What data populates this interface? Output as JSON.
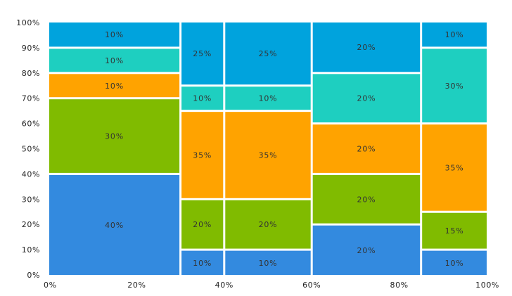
{
  "chart_data": {
    "type": "mekko",
    "x_ticks": [
      "0%",
      "20%",
      "40%",
      "60%",
      "80%",
      "100%"
    ],
    "y_ticks": [
      "0%",
      "10%",
      "20%",
      "30%",
      "40%",
      "50%",
      "60%",
      "70%",
      "80%",
      "90%",
      "100%"
    ],
    "xlim": [
      0,
      100
    ],
    "ylim": [
      0,
      100
    ],
    "grid": false,
    "columns": [
      {
        "width": 30,
        "segments": [
          {
            "value": 40,
            "label": "40%",
            "color": "#338ADF"
          },
          {
            "value": 30,
            "label": "30%",
            "color": "#80BB00"
          },
          {
            "value": 10,
            "label": "10%",
            "color": "#FFA300"
          },
          {
            "value": 10,
            "label": "10%",
            "color": "#1ECFC0"
          },
          {
            "value": 10,
            "label": "10%",
            "color": "#00A3DD"
          }
        ]
      },
      {
        "width": 10,
        "segments": [
          {
            "value": 10,
            "label": "10%",
            "color": "#338ADF"
          },
          {
            "value": 20,
            "label": "20%",
            "color": "#80BB00"
          },
          {
            "value": 35,
            "label": "35%",
            "color": "#FFA300"
          },
          {
            "value": 10,
            "label": "10%",
            "color": "#1ECFC0"
          },
          {
            "value": 25,
            "label": "25%",
            "color": "#00A3DD"
          }
        ]
      },
      {
        "width": 20,
        "segments": [
          {
            "value": 10,
            "label": "10%",
            "color": "#338ADF"
          },
          {
            "value": 20,
            "label": "20%",
            "color": "#80BB00"
          },
          {
            "value": 35,
            "label": "35%",
            "color": "#FFA300"
          },
          {
            "value": 10,
            "label": "10%",
            "color": "#1ECFC0"
          },
          {
            "value": 25,
            "label": "25%",
            "color": "#00A3DD"
          }
        ]
      },
      {
        "width": 25,
        "segments": [
          {
            "value": 20,
            "label": "20%",
            "color": "#338ADF"
          },
          {
            "value": 20,
            "label": "20%",
            "color": "#80BB00"
          },
          {
            "value": 20,
            "label": "20%",
            "color": "#FFA300"
          },
          {
            "value": 20,
            "label": "20%",
            "color": "#1ECFC0"
          },
          {
            "value": 20,
            "label": "20%",
            "color": "#00A3DD"
          }
        ]
      },
      {
        "width": 15,
        "segments": [
          {
            "value": 10,
            "label": "10%",
            "color": "#338ADF"
          },
          {
            "value": 15,
            "label": "15%",
            "color": "#80BB00"
          },
          {
            "value": 35,
            "label": "35%",
            "color": "#FFA300"
          },
          {
            "value": 30,
            "label": "30%",
            "color": "#1ECFC0"
          },
          {
            "value": 10,
            "label": "10%",
            "color": "#00A3DD"
          }
        ]
      }
    ]
  }
}
